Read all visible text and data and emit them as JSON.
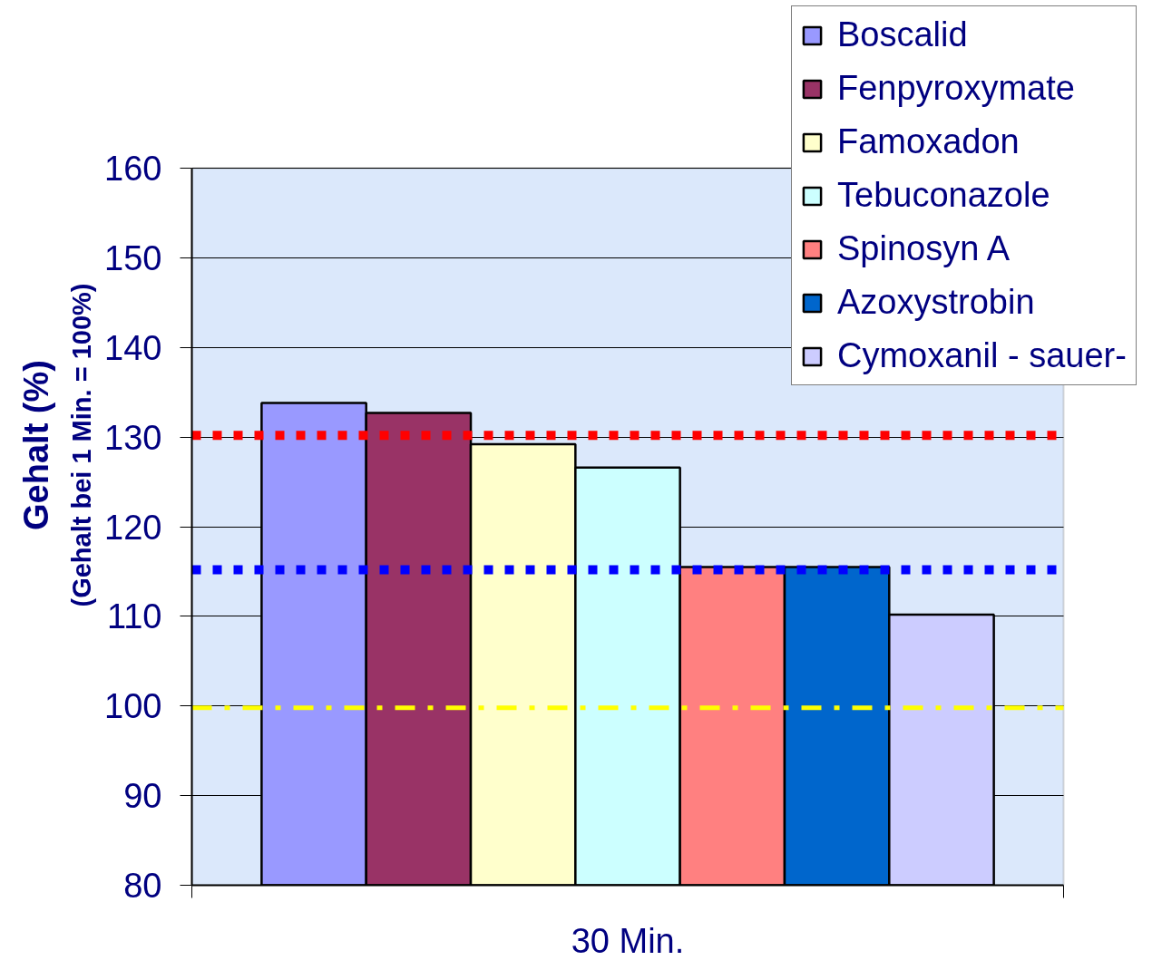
{
  "chart_data": {
    "type": "bar",
    "categories": [
      "30 Min."
    ],
    "ylabel": "Gehalt (%)",
    "annotations": [
      "(Gehalt bei 1 Min. = 100%)"
    ],
    "series": [
      {
        "name": "Boscalid",
        "color": "#9999ff",
        "values": [
          133.8
        ]
      },
      {
        "name": "Fenpyroxymate",
        "color": "#993366",
        "values": [
          132.7
        ]
      },
      {
        "name": "Famoxadon",
        "color": "#ffffcc",
        "values": [
          129.2
        ]
      },
      {
        "name": "Tebuconazole",
        "color": "#ccffff",
        "values": [
          126.6
        ]
      },
      {
        "name": "Spinosyn A",
        "color": "#ff8080",
        "values": [
          115.5
        ]
      },
      {
        "name": "Azoxystrobin",
        "color": "#0066cc",
        "values": [
          115.5
        ]
      },
      {
        "name": "Cymoxanil - sauer-",
        "color": "#ccccff",
        "values": [
          110.2
        ]
      }
    ],
    "ylim": [
      80,
      160
    ],
    "yticks": [
      80,
      90,
      100,
      110,
      120,
      130,
      140,
      150,
      160
    ],
    "grid": "y",
    "legend": "top right",
    "ref_lines": [
      {
        "axis": "y",
        "value": 130.2,
        "color": "#ff0000",
        "line_style": "dotted"
      },
      {
        "axis": "y",
        "value": 115.2,
        "color": "#0000ff",
        "line_style": "dotted"
      },
      {
        "axis": "y",
        "value": 99.8,
        "color": "#ffff00",
        "line_style": "dashdot"
      }
    ]
  }
}
